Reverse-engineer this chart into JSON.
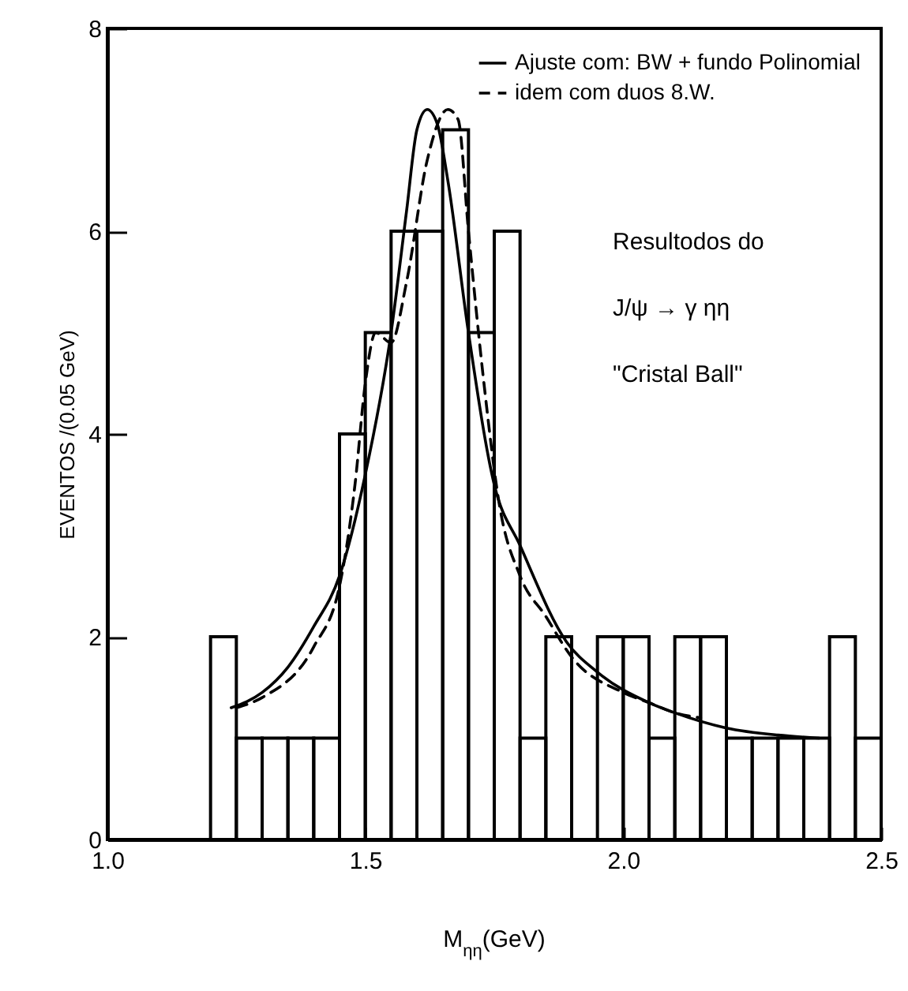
{
  "chart_data": {
    "type": "histogram",
    "xlabel": "M$_{ηη}$(GeV)",
    "ylabel": "EVENTOS /(0.05 GeV)",
    "bins": [
      1.2,
      1.25,
      1.3,
      1.35,
      1.4,
      1.45,
      1.5,
      1.55,
      1.6,
      1.65,
      1.7,
      1.75,
      1.8,
      1.85,
      1.9,
      1.95,
      2.0,
      2.05,
      2.1,
      2.15,
      2.2,
      2.25,
      2.3,
      2.35,
      2.4,
      2.45,
      2.5
    ],
    "values": [
      2,
      1,
      1,
      1,
      1,
      4,
      5,
      6,
      6,
      7,
      5,
      6,
      1,
      2,
      0,
      2,
      2,
      1,
      2,
      2,
      1,
      1,
      1,
      1,
      2,
      1
    ],
    "color": "#000000",
    "series": [
      {
        "type": "line",
        "name": "Ajuste com: BW + fundo Polinomial",
        "color": "#000000",
        "line_style": "solid",
        "x": [
          1.24,
          1.3,
          1.35,
          1.4,
          1.45,
          1.5,
          1.55,
          1.58,
          1.6,
          1.62,
          1.64,
          1.66,
          1.7,
          1.75,
          1.8,
          1.89,
          1.95,
          2.05,
          2.1,
          2.2,
          2.3,
          2.38
        ],
        "values": [
          1.3,
          1.45,
          1.7,
          2.1,
          2.6,
          3.6,
          5.0,
          6.2,
          7.0,
          7.2,
          7.05,
          6.5,
          5.0,
          3.5,
          2.9,
          1.95,
          1.65,
          1.35,
          1.25,
          1.1,
          1.03,
          1.0
        ]
      },
      {
        "type": "line",
        "name": "idem com duos 8.W.",
        "color": "#000000",
        "line_style": "dashed",
        "x": [
          1.25,
          1.3,
          1.4,
          1.45,
          1.48,
          1.5,
          1.52,
          1.55,
          1.58,
          1.62,
          1.66,
          1.68,
          1.7,
          1.73,
          1.76,
          1.8,
          1.85,
          1.9,
          2.0,
          2.05,
          2.1,
          2.15
        ],
        "values": [
          1.3,
          1.4,
          1.9,
          2.5,
          3.5,
          4.5,
          5.0,
          4.9,
          5.5,
          6.7,
          7.2,
          7.1,
          6.0,
          4.5,
          3.3,
          2.6,
          2.2,
          1.8,
          1.45,
          1.35,
          1.25,
          1.2
        ]
      }
    ],
    "xlim": [
      1.0,
      2.5
    ],
    "xticks": [
      {
        "value": 1.0,
        "label": "1.0"
      },
      1.5,
      {
        "value": 2.0,
        "label": "2.0"
      },
      2.5
    ],
    "ylim": [
      0,
      8
    ],
    "yticks": [
      0,
      2,
      4,
      6,
      8
    ],
    "legend": "top right",
    "grid": false,
    "annotations": [
      "Resultodos do",
      "J/ψ → γ ηη",
      "\"Cristal Ball\""
    ]
  }
}
